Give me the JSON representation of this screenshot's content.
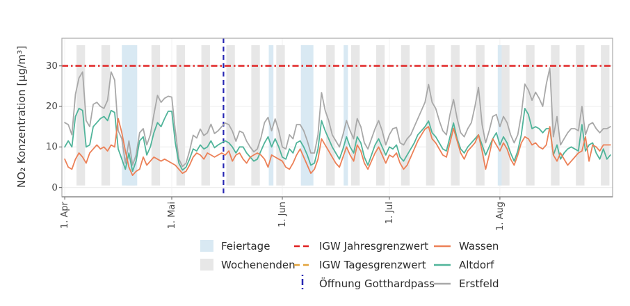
{
  "chart_data": {
    "type": "line",
    "title": "",
    "xlabel": "",
    "ylabel": "NO₂ Konzentration [µg/m³]",
    "y_ticks": [
      0,
      10,
      20,
      30
    ],
    "ylim": [
      -2.3,
      36.8
    ],
    "x_unit": "days, daily values starting 1. Apr",
    "xlim": [
      -0.8,
      153.6
    ],
    "grid": "on",
    "legend_position": "bottom-center",
    "x_ticks": [
      {
        "day": 0,
        "label": "1. Apr"
      },
      {
        "day": 30,
        "label": "1. Mai"
      },
      {
        "day": 61,
        "label": "1. Jun"
      },
      {
        "day": 91,
        "label": "1. Jul"
      },
      {
        "day": 122,
        "label": "1. Aug"
      }
    ],
    "band_value_extent": [
      0.5,
      35.1
    ],
    "bands": {
      "holidays": {
        "label": "Feiertage",
        "color": "#d9e9f3",
        "ranges": [
          [
            16.0,
            20.3
          ],
          [
            57.2,
            58.5
          ],
          [
            66.2,
            69.7
          ],
          [
            78.2,
            79.4
          ],
          [
            121.4,
            122.5
          ]
        ]
      },
      "weekends": {
        "label": "Wochenenden",
        "color": "#e7e7e7",
        "ranges": [
          [
            3.3,
            5.7
          ],
          [
            10.3,
            12.7
          ],
          [
            17.3,
            19.7
          ],
          [
            24.3,
            26.7
          ],
          [
            31.3,
            33.7
          ],
          [
            38.3,
            40.7
          ],
          [
            45.3,
            47.7
          ],
          [
            52.3,
            54.7
          ],
          [
            59.3,
            61.7
          ],
          [
            66.3,
            68.7
          ],
          [
            73.3,
            75.7
          ],
          [
            80.3,
            82.7
          ],
          [
            87.3,
            89.7
          ],
          [
            94.3,
            96.7
          ],
          [
            101.3,
            103.7
          ],
          [
            108.3,
            110.7
          ],
          [
            115.3,
            117.7
          ],
          [
            122.3,
            124.7
          ],
          [
            129.3,
            131.7
          ],
          [
            136.3,
            138.7
          ],
          [
            143.3,
            145.7
          ],
          [
            150.3,
            152.7
          ]
        ]
      }
    },
    "reference_lines": [
      {
        "label": "IGW Jahresgrenzwert",
        "orientation": "horizontal",
        "value": 30,
        "color": "#e02020",
        "dash": "dash-dot",
        "visible_in_plot": true
      },
      {
        "label": "IGW Tagesgrenzwert",
        "orientation": "horizontal",
        "color": "#e2a43c",
        "dash": "dash",
        "visible_in_plot": false
      },
      {
        "label": "Öffnung Gotthardpass",
        "orientation": "vertical",
        "day": 44.5,
        "color": "#2727b3",
        "dash": "dash",
        "visible_in_plot": true
      }
    ],
    "series": [
      {
        "name": "Wassen",
        "color": "#ec8057",
        "values": [
          7,
          5,
          4.5,
          7,
          8.5,
          7.5,
          6,
          8.5,
          9.5,
          10.5,
          9.5,
          10,
          9,
          10.5,
          10,
          17,
          13.5,
          9,
          5,
          3,
          4,
          4.5,
          7.5,
          5.5,
          6.5,
          7.5,
          7,
          6.5,
          7,
          6.5,
          6,
          5.5,
          4.5,
          3.5,
          4,
          5.5,
          7.5,
          8.5,
          8,
          7,
          8.5,
          8,
          7.5,
          8,
          8.5,
          8,
          9,
          6.5,
          8,
          8.5,
          7,
          6,
          7.5,
          8,
          8.5,
          8,
          7,
          5,
          8,
          7.5,
          7,
          6.5,
          5,
          4.5,
          6,
          8,
          9.5,
          7.5,
          5.5,
          3.5,
          4.5,
          7,
          12,
          10.5,
          9,
          7.5,
          6,
          5,
          7.5,
          10,
          8,
          6.5,
          10.5,
          9,
          6,
          4.5,
          6.5,
          8.5,
          10,
          8,
          6,
          8,
          7.5,
          8.5,
          6,
          4.5,
          5.5,
          7.5,
          9.5,
          11.5,
          13,
          14.4,
          15,
          12,
          11,
          9.5,
          8,
          7.5,
          11,
          14.6,
          11.5,
          8.5,
          7,
          9,
          10,
          11,
          13,
          9,
          4.5,
          8,
          12,
          10.5,
          9,
          11,
          9.5,
          7,
          5.5,
          8,
          11,
          12.5,
          12,
          10.5,
          11,
          10,
          9.5,
          10.5,
          15,
          8,
          6.5,
          8.5,
          7,
          5.5,
          6.5,
          7.5,
          8.5,
          9,
          12.5,
          6.5,
          10.5,
          10,
          9,
          10.5,
          10.5,
          10.5
        ]
      },
      {
        "name": "Altdorf",
        "color": "#50b49a",
        "values": [
          10,
          11.5,
          10,
          17.5,
          19.5,
          19,
          10,
          10.5,
          15,
          16,
          17,
          17.5,
          16.5,
          19,
          18.5,
          9.5,
          7,
          4.5,
          8.5,
          4,
          6.5,
          11.5,
          12.5,
          8,
          10,
          13.5,
          16,
          15,
          17,
          18.8,
          18.8,
          11,
          6,
          4.3,
          5,
          7,
          9.5,
          9,
          10.5,
          9.5,
          10,
          11.5,
          9.8,
          10.5,
          11,
          11.5,
          11,
          10,
          8.5,
          10,
          10,
          8.5,
          7.5,
          6.5,
          7,
          9,
          11,
          12.5,
          10,
          12,
          10,
          7.5,
          7,
          9.5,
          8.5,
          11,
          11.5,
          10,
          8,
          5.5,
          6,
          9.5,
          16.5,
          14,
          12,
          10,
          8.5,
          7,
          9.5,
          12.5,
          10,
          8.5,
          12.5,
          11,
          7.5,
          5.5,
          8,
          10.5,
          12,
          10,
          8,
          10,
          9.5,
          10.5,
          7.5,
          6.5,
          8,
          9.5,
          11,
          13,
          14,
          15,
          16.4,
          13.5,
          12.5,
          11,
          9.5,
          9,
          12.5,
          15.9,
          12,
          9.5,
          8.5,
          10,
          11,
          12,
          13,
          10.5,
          8,
          10,
          12,
          13.5,
          10.5,
          12.5,
          11,
          8.5,
          6.5,
          9,
          13,
          19.5,
          18,
          14.5,
          15,
          14.5,
          13.5,
          14.5,
          14.5,
          8,
          10.5,
          7,
          8.5,
          9.5,
          10,
          9.5,
          9,
          15.5,
          9,
          10.5,
          11,
          8.5,
          7,
          9.5,
          7,
          8
        ]
      },
      {
        "name": "Erstfeld",
        "color": "#a8a8a8",
        "values": [
          16,
          15.5,
          13,
          23,
          27,
          28.5,
          16.5,
          15,
          20.5,
          21,
          20,
          19.5,
          21.5,
          28.5,
          26.5,
          14,
          12,
          6,
          11.5,
          5.5,
          8,
          13.5,
          14.5,
          10.5,
          13,
          18,
          22.7,
          21,
          22,
          22.5,
          22.3,
          14,
          7,
          5.2,
          6,
          9,
          12.9,
          12.2,
          14.4,
          12.8,
          13.5,
          15.6,
          13.3,
          14,
          15,
          15.9,
          15.5,
          13.9,
          11.4,
          13.9,
          13.5,
          11.4,
          10,
          8.8,
          9.5,
          12.2,
          16,
          17.3,
          14,
          16.9,
          14,
          10,
          9.5,
          13,
          12,
          15.5,
          15.5,
          14,
          11.5,
          8.5,
          8.5,
          13,
          23.4,
          19,
          16.5,
          13,
          11.5,
          10,
          13,
          16.5,
          14,
          12,
          17,
          15,
          11,
          9.5,
          12,
          14.5,
          16.5,
          14,
          10.5,
          13,
          14.5,
          14.8,
          11,
          10.5,
          12,
          13,
          15,
          17,
          19,
          21,
          25.4,
          21,
          19.5,
          16.5,
          14,
          13,
          18,
          21.7,
          17,
          13.5,
          12.5,
          14.5,
          16,
          20,
          24.7,
          15.5,
          11,
          14,
          17.5,
          18,
          15,
          17.5,
          16,
          13,
          11,
          13,
          18,
          25.5,
          24,
          21.5,
          23.5,
          22,
          20,
          25.5,
          29.5,
          12.5,
          17.5,
          10.5,
          12,
          13.5,
          14.5,
          14.5,
          14,
          20,
          13,
          15.5,
          16,
          14.5,
          13.5,
          14.5,
          14.5,
          15
        ]
      }
    ]
  },
  "legend": {
    "feiertage": "Feiertage",
    "wochenenden": "Wochenenden",
    "jahresgrenzwert": "IGW Jahresgrenzwert",
    "tagesgrenzwert": "IGW Tagesgrenzwert",
    "gotthardpass": "Öffnung Gotthardpass",
    "wassen": "Wassen",
    "altdorf": "Altdorf",
    "erstfeld": "Erstfeld"
  }
}
